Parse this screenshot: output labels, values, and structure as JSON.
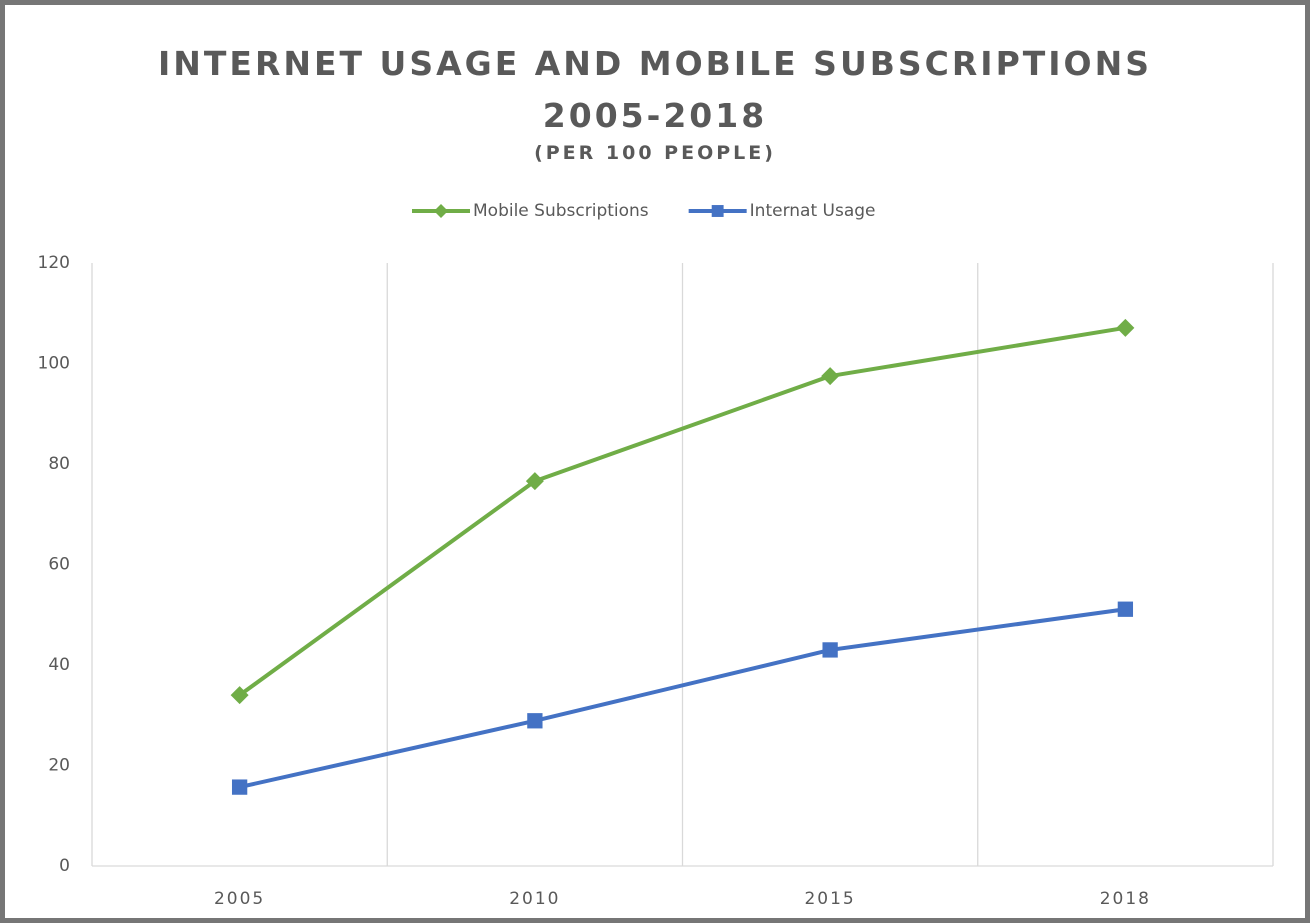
{
  "chart_data": {
    "type": "line",
    "title": "INTERNET USAGE AND MOBILE SUBSCRIPTIONS 2005-2018",
    "subtitle": "(PER 100 PEOPLE)",
    "categories": [
      "2005",
      "2010",
      "2015",
      "2018"
    ],
    "series": [
      {
        "name": "Mobile Subscriptions",
        "color": "#70ad47",
        "marker": "diamond",
        "values": [
          34.0,
          76.6,
          97.5,
          107.1
        ]
      },
      {
        "name": "Internat Usage",
        "color": "#4472c4",
        "marker": "square",
        "values": [
          15.7,
          28.9,
          43.0,
          51.1
        ]
      }
    ],
    "ylim": [
      0,
      120
    ],
    "yticks": [
      0,
      20,
      40,
      60,
      80,
      100,
      120
    ],
    "grid": true,
    "legend": "top"
  }
}
